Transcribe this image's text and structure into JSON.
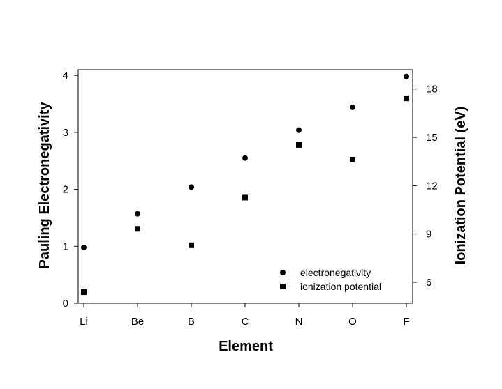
{
  "chart_data": {
    "type": "scatter",
    "categories": [
      "Li",
      "Be",
      "B",
      "C",
      "N",
      "O",
      "F"
    ],
    "xlabel": "Element",
    "ylabel_left": "Pauling Electronegativity",
    "ylabel_right": "Ionization Potential (eV)",
    "ylim_left": [
      0,
      4.1
    ],
    "yticks_left": [
      0,
      1,
      2,
      3,
      4
    ],
    "ylim_right": [
      4.7,
      19.2
    ],
    "yticks_right": [
      6,
      9,
      12,
      15,
      18
    ],
    "legend_placement": "bottom-right inside",
    "grid": false,
    "series": [
      {
        "name": "electronegativity",
        "axis": "left",
        "marker": "circle",
        "values": [
          0.98,
          1.57,
          2.04,
          2.55,
          3.04,
          3.44,
          3.98
        ]
      },
      {
        "name": "ionization potential",
        "axis": "right",
        "marker": "square",
        "values": [
          5.39,
          9.32,
          8.3,
          11.26,
          14.53,
          13.62,
          17.42
        ]
      }
    ]
  }
}
